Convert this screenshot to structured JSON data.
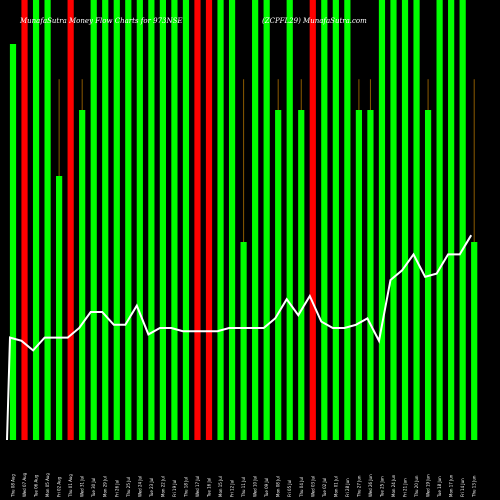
{
  "chart_data": {
    "type": "bar",
    "title_left": "MunafaSutra Money Flow Charts for 973NSE",
    "title_right": "(ZCPFL29) MunafaSutra.com",
    "colors": {
      "up": "#00ff00",
      "down": "#ff0000",
      "line": "#ffffff",
      "wick": "#8b5a00",
      "background": "#000000"
    },
    "ylim": [
      0,
      100
    ],
    "bars": [
      {
        "date": "Thu 08 Aug",
        "value": 90,
        "color": "up",
        "wick": 0
      },
      {
        "date": "Wed 07 Aug",
        "value": 100,
        "color": "down",
        "wick": 0
      },
      {
        "date": "Tue 06 Aug",
        "value": 100,
        "color": "up",
        "wick": 0
      },
      {
        "date": "Mon 05 Aug",
        "value": 100,
        "color": "up",
        "wick": 0
      },
      {
        "date": "Fri 02 Aug",
        "value": 60,
        "color": "up",
        "wick": 82
      },
      {
        "date": "Thu 01 Aug",
        "value": 100,
        "color": "down",
        "wick": 0
      },
      {
        "date": "Wed 31 Jul",
        "value": 75,
        "color": "up",
        "wick": 82
      },
      {
        "date": "Tue 30 Jul",
        "value": 100,
        "color": "up",
        "wick": 0
      },
      {
        "date": "Mon 29 Jul",
        "value": 100,
        "color": "up",
        "wick": 0
      },
      {
        "date": "Fri 26 Jul",
        "value": 100,
        "color": "up",
        "wick": 0
      },
      {
        "date": "Thu 25 Jul",
        "value": 100,
        "color": "up",
        "wick": 0
      },
      {
        "date": "Wed 24 Jul",
        "value": 100,
        "color": "up",
        "wick": 0
      },
      {
        "date": "Tue 23 Jul",
        "value": 100,
        "color": "up",
        "wick": 0
      },
      {
        "date": "Mon 22 Jul",
        "value": 100,
        "color": "up",
        "wick": 0
      },
      {
        "date": "Fri 19 Jul",
        "value": 100,
        "color": "up",
        "wick": 0
      },
      {
        "date": "Thu 18 Jul",
        "value": 100,
        "color": "up",
        "wick": 0
      },
      {
        "date": "Wed 17 Jul",
        "value": 100,
        "color": "down",
        "wick": 0
      },
      {
        "date": "Tue 16 Jul",
        "value": 100,
        "color": "down",
        "wick": 0
      },
      {
        "date": "Mon 15 Jul",
        "value": 100,
        "color": "up",
        "wick": 0
      },
      {
        "date": "Fri 12 Jul",
        "value": 100,
        "color": "up",
        "wick": 0
      },
      {
        "date": "Thu 11 Jul",
        "value": 45,
        "color": "up",
        "wick": 82
      },
      {
        "date": "Wed 10 Jul",
        "value": 100,
        "color": "up",
        "wick": 0
      },
      {
        "date": "Tue 09 Jul",
        "value": 100,
        "color": "up",
        "wick": 0
      },
      {
        "date": "Mon 08 Jul",
        "value": 75,
        "color": "up",
        "wick": 82
      },
      {
        "date": "Fri 05 Jul",
        "value": 100,
        "color": "up",
        "wick": 0
      },
      {
        "date": "Thu 04 Jul",
        "value": 75,
        "color": "up",
        "wick": 82
      },
      {
        "date": "Wed 03 Jul",
        "value": 100,
        "color": "down",
        "wick": 0
      },
      {
        "date": "Tue 02 Jul",
        "value": 100,
        "color": "up",
        "wick": 0
      },
      {
        "date": "Mon 01 Jul",
        "value": 100,
        "color": "up",
        "wick": 0
      },
      {
        "date": "Fri 28 Jun",
        "value": 100,
        "color": "up",
        "wick": 0
      },
      {
        "date": "Thu 27 Jun",
        "value": 75,
        "color": "up",
        "wick": 82
      },
      {
        "date": "Wed 26 Jun",
        "value": 75,
        "color": "up",
        "wick": 82
      },
      {
        "date": "Tue 25 Jun",
        "value": 100,
        "color": "up",
        "wick": 0
      },
      {
        "date": "Mon 24 Jun",
        "value": 100,
        "color": "up",
        "wick": 0
      },
      {
        "date": "Fri 21 Jun",
        "value": 100,
        "color": "up",
        "wick": 0
      },
      {
        "date": "Thu 20 Jun",
        "value": 100,
        "color": "up",
        "wick": 0
      },
      {
        "date": "Wed 19 Jun",
        "value": 75,
        "color": "up",
        "wick": 82
      },
      {
        "date": "Tue 18 Jun",
        "value": 100,
        "color": "up",
        "wick": 0
      },
      {
        "date": "Mon 17 Jun",
        "value": 100,
        "color": "up",
        "wick": 0
      },
      {
        "date": "Fri 14 Jun",
        "value": 100,
        "color": "up",
        "wick": 0
      },
      {
        "date": "Thu 13 Jun",
        "value": 45,
        "color": "up",
        "wick": 82
      }
    ],
    "line_values": [
      32,
      31,
      28,
      32,
      32,
      32,
      35,
      40,
      40,
      36,
      36,
      42,
      33,
      35,
      35,
      34,
      34,
      34,
      34,
      35,
      35,
      35,
      35,
      38,
      44,
      39,
      45,
      37,
      35,
      35,
      36,
      38,
      31,
      50,
      53,
      58,
      51,
      52,
      58,
      58,
      64
    ]
  }
}
